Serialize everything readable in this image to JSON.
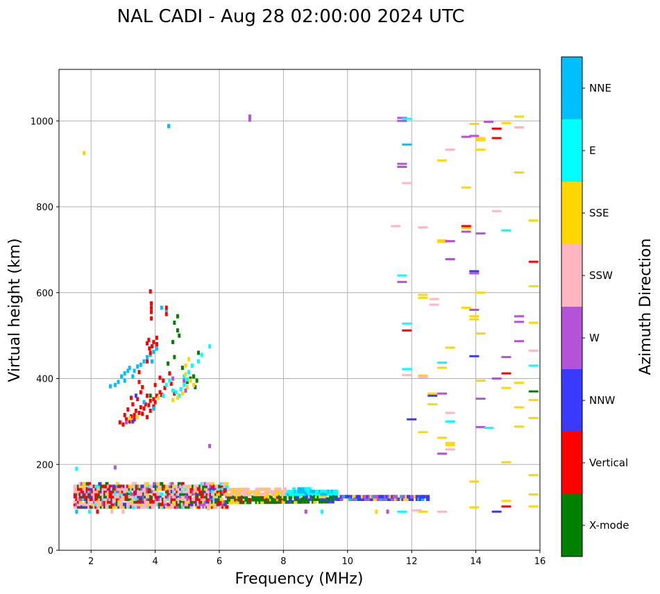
{
  "chart_data": {
    "type": "scatter",
    "title": "NAL CADI - Aug 28 02:00:00 2024 UTC",
    "xlabel": "Frequency (MHz)",
    "ylabel": "Virtual height (km)",
    "xlim": [
      1,
      16
    ],
    "ylim": [
      0,
      1120
    ],
    "xticks": [
      2,
      4,
      6,
      8,
      10,
      12,
      14,
      16
    ],
    "yticks": [
      0,
      200,
      400,
      600,
      800,
      1000
    ],
    "grid": true,
    "colorbar": {
      "label": "Azimuth Direction",
      "categories": [
        {
          "name": "X-mode",
          "color": "#008000"
        },
        {
          "name": "Vertical",
          "color": "#ff0000"
        },
        {
          "name": "NNW",
          "color": "#3a3aff"
        },
        {
          "name": "W",
          "color": "#b253d8"
        },
        {
          "name": "SSW",
          "color": "#ffb6c1"
        },
        {
          "name": "SSE",
          "color": "#ffd700"
        },
        {
          "name": "E",
          "color": "#00ffff"
        },
        {
          "name": "NNE",
          "color": "#00bfff"
        }
      ]
    },
    "points": [
      {
        "f": 1.78,
        "h": 925,
        "c": "SSE"
      },
      {
        "f": 1.55,
        "h": 190,
        "c": "E"
      },
      {
        "f": 4.42,
        "h": 988,
        "c": "NNE"
      },
      {
        "f": 6.95,
        "h": 1010,
        "c": "W"
      },
      {
        "f": 6.95,
        "h": 1003,
        "c": "W"
      },
      {
        "f": 5.7,
        "h": 243,
        "c": "W"
      },
      {
        "f": 5.7,
        "h": 475,
        "c": "E"
      },
      {
        "f": 2.75,
        "h": 193,
        "c": "W"
      },
      {
        "f": 2.9,
        "h": 298,
        "c": "Vertical"
      },
      {
        "f": 3.0,
        "h": 293,
        "c": "Vertical"
      },
      {
        "f": 3.1,
        "h": 305,
        "c": "Vertical"
      },
      {
        "f": 3.2,
        "h": 300,
        "c": "Vertical"
      },
      {
        "f": 3.25,
        "h": 312,
        "c": "Vertical"
      },
      {
        "f": 3.35,
        "h": 315,
        "c": "Vertical"
      },
      {
        "f": 3.4,
        "h": 325,
        "c": "Vertical"
      },
      {
        "f": 3.5,
        "h": 320,
        "c": "Vertical"
      },
      {
        "f": 3.55,
        "h": 333,
        "c": "Vertical"
      },
      {
        "f": 3.65,
        "h": 330,
        "c": "Vertical"
      },
      {
        "f": 3.7,
        "h": 340,
        "c": "Vertical"
      },
      {
        "f": 3.8,
        "h": 338,
        "c": "Vertical"
      },
      {
        "f": 3.85,
        "h": 348,
        "c": "Vertical"
      },
      {
        "f": 3.95,
        "h": 352,
        "c": "Vertical"
      },
      {
        "f": 4.05,
        "h": 360,
        "c": "Vertical"
      },
      {
        "f": 4.15,
        "h": 368,
        "c": "Vertical"
      },
      {
        "f": 4.2,
        "h": 362,
        "c": "Vertical"
      },
      {
        "f": 3.3,
        "h": 340,
        "c": "Vertical"
      },
      {
        "f": 3.45,
        "h": 352,
        "c": "Vertical"
      },
      {
        "f": 3.55,
        "h": 368,
        "c": "Vertical"
      },
      {
        "f": 3.6,
        "h": 380,
        "c": "Vertical"
      },
      {
        "f": 3.5,
        "h": 392,
        "c": "Vertical"
      },
      {
        "f": 3.25,
        "h": 355,
        "c": "Vertical"
      },
      {
        "f": 3.75,
        "h": 310,
        "c": "Vertical"
      },
      {
        "f": 3.85,
        "h": 325,
        "c": "Vertical"
      },
      {
        "f": 3.95,
        "h": 335,
        "c": "Vertical"
      },
      {
        "f": 4.0,
        "h": 345,
        "c": "Vertical"
      },
      {
        "f": 3.15,
        "h": 328,
        "c": "Vertical"
      },
      {
        "f": 3.35,
        "h": 305,
        "c": "Vertical"
      },
      {
        "f": 3.05,
        "h": 315,
        "c": "Vertical"
      },
      {
        "f": 3.6,
        "h": 318,
        "c": "Vertical"
      },
      {
        "f": 3.75,
        "h": 360,
        "c": "Vertical"
      },
      {
        "f": 3.2,
        "h": 308,
        "c": "SSE"
      },
      {
        "f": 3.45,
        "h": 310,
        "c": "SSE"
      },
      {
        "f": 3.95,
        "h": 330,
        "c": "NNE"
      },
      {
        "f": 3.3,
        "h": 300,
        "c": "NNW"
      },
      {
        "f": 3.65,
        "h": 345,
        "c": "NNE"
      },
      {
        "f": 3.1,
        "h": 298,
        "c": "W"
      },
      {
        "f": 3.85,
        "h": 360,
        "c": "X-mode"
      },
      {
        "f": 4.1,
        "h": 355,
        "c": "SSE"
      },
      {
        "f": 3.4,
        "h": 360,
        "c": "NNW"
      },
      {
        "f": 2.6,
        "h": 382,
        "c": "NNE"
      },
      {
        "f": 2.75,
        "h": 385,
        "c": "NNE"
      },
      {
        "f": 2.85,
        "h": 392,
        "c": "NNE"
      },
      {
        "f": 2.95,
        "h": 405,
        "c": "NNE"
      },
      {
        "f": 3.05,
        "h": 412,
        "c": "NNE"
      },
      {
        "f": 3.15,
        "h": 418,
        "c": "NNE"
      },
      {
        "f": 3.2,
        "h": 425,
        "c": "NNE"
      },
      {
        "f": 3.35,
        "h": 418,
        "c": "NNE"
      },
      {
        "f": 3.45,
        "h": 428,
        "c": "NNE"
      },
      {
        "f": 3.55,
        "h": 432,
        "c": "NNE"
      },
      {
        "f": 3.65,
        "h": 440,
        "c": "NNE"
      },
      {
        "f": 3.75,
        "h": 450,
        "c": "NNE"
      },
      {
        "f": 3.85,
        "h": 455,
        "c": "NNE"
      },
      {
        "f": 3.95,
        "h": 462,
        "c": "NNE"
      },
      {
        "f": 4.05,
        "h": 470,
        "c": "NNE"
      },
      {
        "f": 4.2,
        "h": 565,
        "c": "NNE"
      },
      {
        "f": 4.35,
        "h": 560,
        "c": "NNE"
      },
      {
        "f": 3.05,
        "h": 395,
        "c": "NNE"
      },
      {
        "f": 3.3,
        "h": 405,
        "c": "NNE"
      },
      {
        "f": 3.9,
        "h": 440,
        "c": "NNE"
      },
      {
        "f": 3.75,
        "h": 482,
        "c": "Vertical"
      },
      {
        "f": 3.8,
        "h": 490,
        "c": "Vertical"
      },
      {
        "f": 3.82,
        "h": 470,
        "c": "Vertical"
      },
      {
        "f": 3.85,
        "h": 460,
        "c": "Vertical"
      },
      {
        "f": 3.9,
        "h": 475,
        "c": "Vertical"
      },
      {
        "f": 3.95,
        "h": 485,
        "c": "Vertical"
      },
      {
        "f": 3.88,
        "h": 555,
        "c": "Vertical"
      },
      {
        "f": 3.88,
        "h": 565,
        "c": "Vertical"
      },
      {
        "f": 3.88,
        "h": 575,
        "c": "Vertical"
      },
      {
        "f": 3.88,
        "h": 540,
        "c": "Vertical"
      },
      {
        "f": 3.85,
        "h": 603,
        "c": "Vertical"
      },
      {
        "f": 4.35,
        "h": 565,
        "c": "Vertical"
      },
      {
        "f": 4.35,
        "h": 550,
        "c": "Vertical"
      },
      {
        "f": 4.05,
        "h": 495,
        "c": "Vertical"
      },
      {
        "f": 4.05,
        "h": 480,
        "c": "Vertical"
      },
      {
        "f": 4.15,
        "h": 402,
        "c": "Vertical"
      },
      {
        "f": 4.25,
        "h": 395,
        "c": "Vertical"
      },
      {
        "f": 4.45,
        "h": 412,
        "c": "Vertical"
      },
      {
        "f": 4.3,
        "h": 378,
        "c": "Vertical"
      },
      {
        "f": 4.5,
        "h": 388,
        "c": "Vertical"
      },
      {
        "f": 4.0,
        "h": 385,
        "c": "Vertical"
      },
      {
        "f": 4.6,
        "h": 365,
        "c": "Vertical"
      },
      {
        "f": 3.75,
        "h": 440,
        "c": "Vertical"
      },
      {
        "f": 3.5,
        "h": 415,
        "c": "Vertical"
      },
      {
        "f": 4.6,
        "h": 530,
        "c": "X-mode"
      },
      {
        "f": 4.7,
        "h": 545,
        "c": "X-mode"
      },
      {
        "f": 4.7,
        "h": 512,
        "c": "X-mode"
      },
      {
        "f": 4.75,
        "h": 500,
        "c": "X-mode"
      },
      {
        "f": 4.55,
        "h": 485,
        "c": "X-mode"
      },
      {
        "f": 4.6,
        "h": 450,
        "c": "X-mode"
      },
      {
        "f": 4.85,
        "h": 425,
        "c": "X-mode"
      },
      {
        "f": 5.0,
        "h": 392,
        "c": "X-mode"
      },
      {
        "f": 5.1,
        "h": 400,
        "c": "X-mode"
      },
      {
        "f": 5.2,
        "h": 405,
        "c": "X-mode"
      },
      {
        "f": 5.3,
        "h": 395,
        "c": "X-mode"
      },
      {
        "f": 5.35,
        "h": 460,
        "c": "X-mode"
      },
      {
        "f": 5.25,
        "h": 380,
        "c": "X-mode"
      },
      {
        "f": 4.4,
        "h": 435,
        "c": "X-mode"
      },
      {
        "f": 4.45,
        "h": 395,
        "c": "E"
      },
      {
        "f": 4.55,
        "h": 372,
        "c": "E"
      },
      {
        "f": 4.65,
        "h": 368,
        "c": "E"
      },
      {
        "f": 4.8,
        "h": 375,
        "c": "E"
      },
      {
        "f": 4.9,
        "h": 385,
        "c": "E"
      },
      {
        "f": 5.0,
        "h": 398,
        "c": "E"
      },
      {
        "f": 4.9,
        "h": 405,
        "c": "E"
      },
      {
        "f": 4.35,
        "h": 385,
        "c": "E"
      },
      {
        "f": 5.15,
        "h": 430,
        "c": "E"
      },
      {
        "f": 5.35,
        "h": 440,
        "c": "E"
      },
      {
        "f": 5.45,
        "h": 455,
        "c": "E"
      },
      {
        "f": 4.75,
        "h": 360,
        "c": "E"
      },
      {
        "f": 5.05,
        "h": 415,
        "c": "E"
      },
      {
        "f": 4.25,
        "h": 360,
        "c": "E"
      },
      {
        "f": 4.7,
        "h": 355,
        "c": "SSE"
      },
      {
        "f": 4.85,
        "h": 365,
        "c": "SSE"
      },
      {
        "f": 5.0,
        "h": 380,
        "c": "SSE"
      },
      {
        "f": 5.1,
        "h": 395,
        "c": "SSE"
      },
      {
        "f": 5.2,
        "h": 385,
        "c": "SSE"
      },
      {
        "f": 5.05,
        "h": 445,
        "c": "SSE"
      },
      {
        "f": 4.95,
        "h": 430,
        "c": "SSE"
      },
      {
        "f": 4.55,
        "h": 350,
        "c": "SSE"
      },
      {
        "f": 4.95,
        "h": 410,
        "c": "SSE"
      },
      {
        "f": 4.9,
        "h": 395,
        "c": "W"
      },
      {
        "f": 4.95,
        "h": 372,
        "c": "W"
      },
      {
        "f": 4.55,
        "h": 400,
        "c": "W"
      },
      {
        "f": 11.7,
        "h": 1007,
        "c": "W"
      },
      {
        "f": 11.7,
        "h": 1000,
        "c": "W"
      },
      {
        "f": 11.85,
        "h": 1005,
        "c": "E"
      },
      {
        "f": 11.85,
        "h": 945,
        "c": "NNE"
      },
      {
        "f": 11.7,
        "h": 900,
        "c": "W"
      },
      {
        "f": 11.7,
        "h": 893,
        "c": "W"
      },
      {
        "f": 11.85,
        "h": 855,
        "c": "SSW"
      },
      {
        "f": 11.5,
        "h": 755,
        "c": "SSW"
      },
      {
        "f": 11.7,
        "h": 640,
        "c": "E"
      },
      {
        "f": 11.7,
        "h": 625,
        "c": "W"
      },
      {
        "f": 11.85,
        "h": 528,
        "c": "E"
      },
      {
        "f": 11.85,
        "h": 512,
        "c": "Vertical"
      },
      {
        "f": 11.85,
        "h": 422,
        "c": "E"
      },
      {
        "f": 11.85,
        "h": 408,
        "c": "SSW"
      },
      {
        "f": 12.0,
        "h": 305,
        "c": "NNW"
      },
      {
        "f": 12.35,
        "h": 752,
        "c": "SSW"
      },
      {
        "f": 12.35,
        "h": 595,
        "c": "SSE"
      },
      {
        "f": 12.35,
        "h": 588,
        "c": "SSE"
      },
      {
        "f": 12.7,
        "h": 585,
        "c": "SSW"
      },
      {
        "f": 12.7,
        "h": 572,
        "c": "SSW"
      },
      {
        "f": 12.35,
        "h": 407,
        "c": "SSE"
      },
      {
        "f": 12.35,
        "h": 403,
        "c": "SSW"
      },
      {
        "f": 12.35,
        "h": 275,
        "c": "SSE"
      },
      {
        "f": 12.65,
        "h": 365,
        "c": "SSE"
      },
      {
        "f": 12.65,
        "h": 360,
        "c": "NNW"
      },
      {
        "f": 12.65,
        "h": 340,
        "c": "SSE"
      },
      {
        "f": 12.95,
        "h": 437,
        "c": "E"
      },
      {
        "f": 12.95,
        "h": 425,
        "c": "SSE"
      },
      {
        "f": 12.95,
        "h": 365,
        "c": "W"
      },
      {
        "f": 12.95,
        "h": 262,
        "c": "SSE"
      },
      {
        "f": 12.95,
        "h": 225,
        "c": "W"
      },
      {
        "f": 12.95,
        "h": 908,
        "c": "SSE"
      },
      {
        "f": 12.95,
        "h": 722,
        "c": "SSE"
      },
      {
        "f": 12.95,
        "h": 718,
        "c": "SSE"
      },
      {
        "f": 13.2,
        "h": 933,
        "c": "SSW"
      },
      {
        "f": 13.2,
        "h": 720,
        "c": "W"
      },
      {
        "f": 13.2,
        "h": 678,
        "c": "W"
      },
      {
        "f": 13.2,
        "h": 472,
        "c": "SSE"
      },
      {
        "f": 13.2,
        "h": 320,
        "c": "SSW"
      },
      {
        "f": 13.2,
        "h": 300,
        "c": "E"
      },
      {
        "f": 13.2,
        "h": 250,
        "c": "SSE"
      },
      {
        "f": 13.2,
        "h": 245,
        "c": "SSE"
      },
      {
        "f": 13.2,
        "h": 235,
        "c": "SSW"
      },
      {
        "f": 13.7,
        "h": 963,
        "c": "W"
      },
      {
        "f": 13.7,
        "h": 845,
        "c": "SSE"
      },
      {
        "f": 13.7,
        "h": 755,
        "c": "Vertical"
      },
      {
        "f": 13.7,
        "h": 750,
        "c": "SSE"
      },
      {
        "f": 13.7,
        "h": 742,
        "c": "W"
      },
      {
        "f": 13.7,
        "h": 565,
        "c": "SSE"
      },
      {
        "f": 13.95,
        "h": 993,
        "c": "SSE"
      },
      {
        "f": 13.95,
        "h": 965,
        "c": "W"
      },
      {
        "f": 13.95,
        "h": 650,
        "c": "NNW"
      },
      {
        "f": 13.95,
        "h": 645,
        "c": "W"
      },
      {
        "f": 13.95,
        "h": 560,
        "c": "W"
      },
      {
        "f": 13.95,
        "h": 545,
        "c": "SSE"
      },
      {
        "f": 13.95,
        "h": 538,
        "c": "SSE"
      },
      {
        "f": 13.95,
        "h": 452,
        "c": "NNW"
      },
      {
        "f": 13.95,
        "h": 160,
        "c": "SSE"
      },
      {
        "f": 13.95,
        "h": 100,
        "c": "SSE"
      },
      {
        "f": 14.15,
        "h": 960,
        "c": "SSE"
      },
      {
        "f": 14.15,
        "h": 955,
        "c": "SSE"
      },
      {
        "f": 14.15,
        "h": 933,
        "c": "SSE"
      },
      {
        "f": 14.15,
        "h": 738,
        "c": "W"
      },
      {
        "f": 14.15,
        "h": 600,
        "c": "SSE"
      },
      {
        "f": 14.15,
        "h": 505,
        "c": "SSE"
      },
      {
        "f": 14.15,
        "h": 395,
        "c": "SSE"
      },
      {
        "f": 14.15,
        "h": 353,
        "c": "W"
      },
      {
        "f": 14.15,
        "h": 287,
        "c": "W"
      },
      {
        "f": 14.4,
        "h": 998,
        "c": "W"
      },
      {
        "f": 14.4,
        "h": 285,
        "c": "E"
      },
      {
        "f": 14.65,
        "h": 982,
        "c": "Vertical"
      },
      {
        "f": 14.65,
        "h": 960,
        "c": "Vertical"
      },
      {
        "f": 14.65,
        "h": 790,
        "c": "SSW"
      },
      {
        "f": 14.65,
        "h": 400,
        "c": "W"
      },
      {
        "f": 14.65,
        "h": 90,
        "c": "NNW"
      },
      {
        "f": 14.95,
        "h": 995,
        "c": "SSE"
      },
      {
        "f": 14.95,
        "h": 745,
        "c": "E"
      },
      {
        "f": 14.95,
        "h": 450,
        "c": "W"
      },
      {
        "f": 14.95,
        "h": 412,
        "c": "Vertical"
      },
      {
        "f": 14.95,
        "h": 378,
        "c": "SSE"
      },
      {
        "f": 14.95,
        "h": 205,
        "c": "SSE"
      },
      {
        "f": 14.95,
        "h": 115,
        "c": "SSE"
      },
      {
        "f": 14.95,
        "h": 102,
        "c": "Vertical"
      },
      {
        "f": 15.35,
        "h": 1010,
        "c": "SSE"
      },
      {
        "f": 15.35,
        "h": 985,
        "c": "SSW"
      },
      {
        "f": 15.35,
        "h": 880,
        "c": "SSE"
      },
      {
        "f": 15.35,
        "h": 545,
        "c": "W"
      },
      {
        "f": 15.35,
        "h": 532,
        "c": "W"
      },
      {
        "f": 15.35,
        "h": 487,
        "c": "W"
      },
      {
        "f": 15.35,
        "h": 390,
        "c": "SSE"
      },
      {
        "f": 15.35,
        "h": 333,
        "c": "SSE"
      },
      {
        "f": 15.35,
        "h": 288,
        "c": "SSE"
      },
      {
        "f": 15.8,
        "h": 768,
        "c": "SSE"
      },
      {
        "f": 15.8,
        "h": 672,
        "c": "Vertical"
      },
      {
        "f": 15.8,
        "h": 615,
        "c": "SSE"
      },
      {
        "f": 15.8,
        "h": 530,
        "c": "SSE"
      },
      {
        "f": 15.8,
        "h": 465,
        "c": "SSW"
      },
      {
        "f": 15.8,
        "h": 430,
        "c": "E"
      },
      {
        "f": 15.8,
        "h": 370,
        "c": "X-mode"
      },
      {
        "f": 15.8,
        "h": 350,
        "c": "SSE"
      },
      {
        "f": 15.8,
        "h": 308,
        "c": "SSE"
      },
      {
        "f": 15.8,
        "h": 175,
        "c": "SSE"
      },
      {
        "f": 15.8,
        "h": 130,
        "c": "SSE"
      },
      {
        "f": 15.8,
        "h": 102,
        "c": "SSE"
      },
      {
        "f": 10.9,
        "h": 90,
        "c": "SSE"
      },
      {
        "f": 11.25,
        "h": 90,
        "c": "W"
      },
      {
        "f": 11.7,
        "h": 90,
        "c": "E"
      },
      {
        "f": 12.35,
        "h": 90,
        "c": "SSE"
      },
      {
        "f": 12.95,
        "h": 90,
        "c": "SSW"
      },
      {
        "f": 12.15,
        "h": 93,
        "c": "SSW"
      },
      {
        "f": 8.7,
        "h": 90,
        "c": "W"
      },
      {
        "f": 9.2,
        "h": 90,
        "c": "E"
      },
      {
        "f": 2.2,
        "h": 90,
        "c": "Vertical"
      },
      {
        "f": 1.95,
        "h": 90,
        "c": "E"
      },
      {
        "f": 2.65,
        "h": 90,
        "c": "SSW"
      },
      {
        "f": 3.0,
        "h": 90,
        "c": "SSW"
      },
      {
        "f": 5.65,
        "h": 98,
        "c": "SSW"
      },
      {
        "f": 1.55,
        "h": 90,
        "c": "NNE"
      }
    ],
    "band": {
      "f_min": 1.45,
      "f_max": 12.5,
      "h_min": 100,
      "h_max": 158
    }
  }
}
